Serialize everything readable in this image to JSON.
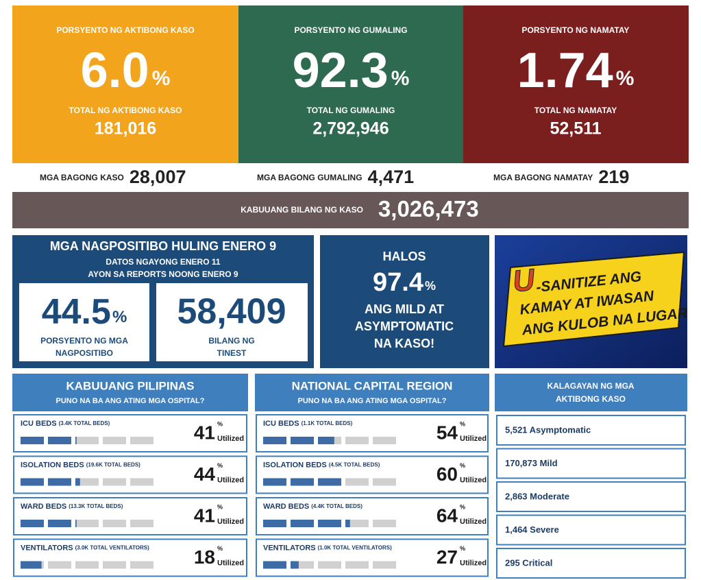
{
  "top_stats": [
    {
      "label": "PORSYENTO NG AKTIBONG KASO",
      "percent": {
        "value": "6.0",
        "unit": "%"
      },
      "total_label": "TOTAL NG AKTIBONG KASO",
      "total": "181,016"
    },
    {
      "label": "PORSYENTO NG GUMALING",
      "percent": {
        "value": "92.3",
        "unit": "%"
      },
      "total_label": "TOTAL NG GUMALING",
      "total": "2,792,946"
    },
    {
      "label": "PORSYENTO NG NAMATAY",
      "percent": {
        "value": "1.74",
        "unit": "%"
      },
      "total_label": "TOTAL NG NAMATAY",
      "total": "52,511"
    }
  ],
  "new_cases": [
    {
      "label": "MGA BAGONG KASO",
      "value": "28,007"
    },
    {
      "label": "MGA BAGONG GUMALING",
      "value": "4,471"
    },
    {
      "label": "MGA BAGONG NAMATAY",
      "value": "219"
    }
  ],
  "total_cases": {
    "label": "KABUUANG BILANG NG KASO",
    "value": "3,026,473"
  },
  "positivity": {
    "title": "MGA NAGPOSITIBO HULING ENERO 9",
    "subtitle_lines": [
      "DATOS NGAYONG ENERO 11",
      "AYON SA REPORTS NOONG ENERO 9"
    ],
    "rate": {
      "value": "44.5",
      "unit": "%",
      "label_lines": [
        "PORSYENTO NG MGA",
        "NAGPOSITIBO"
      ]
    },
    "tested": {
      "value": "58,409",
      "label_lines": [
        "BILANG NG",
        "TINEST"
      ]
    }
  },
  "mild": {
    "top": "HALOS",
    "value": "97.4",
    "unit": "%",
    "lines": [
      "ANG MILD AT",
      "ASYMPTOMATIC",
      "NA KASO!"
    ]
  },
  "banner": {
    "letter": "U",
    "lines": [
      "-SANITIZE ANG",
      "KAMAY AT IWASAN",
      "ANG KULOB NA LUGAR"
    ]
  },
  "hospitals": [
    {
      "title": "KABUUANG PILIPINAS",
      "subtitle": "PUNO NA BA ANG ATING MGA OSPITAL?",
      "rows": [
        {
          "label": "ICU BEDS",
          "note": "(3.4K TOTAL BEDS)",
          "value": 41,
          "unit": "%",
          "caption": "Utilized"
        },
        {
          "label": "ISOLATION BEDS",
          "note": "(19.6K TOTAL BEDS)",
          "value": 44,
          "unit": "%",
          "caption": "Utilized"
        },
        {
          "label": "WARD BEDS",
          "note": "(13.3K TOTAL BEDS)",
          "value": 41,
          "unit": "%",
          "caption": "Utilized"
        },
        {
          "label": "VENTILATORS",
          "note": "(3.0K TOTAL VENTILATORS)",
          "value": 18,
          "unit": "%",
          "caption": "Utilized"
        }
      ]
    },
    {
      "title": "NATIONAL CAPITAL REGION",
      "subtitle": "PUNO NA BA ANG ATING MGA OSPITAL?",
      "rows": [
        {
          "label": "ICU BEDS",
          "note": "(1.1K TOTAL BEDS)",
          "value": 54,
          "unit": "%",
          "caption": "Utilized"
        },
        {
          "label": "ISOLATION BEDS",
          "note": "(4.5K TOTAL BEDS)",
          "value": 60,
          "unit": "%",
          "caption": "Utilized"
        },
        {
          "label": "WARD BEDS",
          "note": "(4.4K TOTAL BEDS)",
          "value": 64,
          "unit": "%",
          "caption": "Utilized"
        },
        {
          "label": "VENTILATORS",
          "note": "(1.0K TOTAL VENTILATORS)",
          "value": 27,
          "unit": "%",
          "caption": "Utilized"
        }
      ]
    }
  ],
  "status": {
    "title_lines": [
      "KALAGAYAN NG MGA",
      "AKTIBONG KASO"
    ],
    "items": [
      "5,521 Asymptomatic",
      "170,873 Mild",
      "2,863 Moderate",
      "1,464 Severe",
      "295 Critical"
    ]
  }
}
